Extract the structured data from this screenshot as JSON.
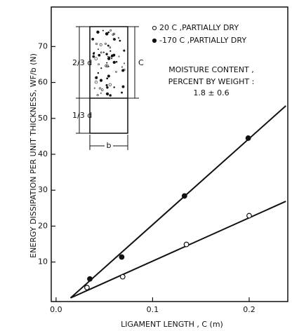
{
  "chart_data": {
    "type": "scatter",
    "x_label": "LIGAMENT LENGTH , C (m)",
    "y_label": "ENERGY DISSIPATION PER UNIT THICKNESS, WF/b (N)",
    "xlim": [
      -0.005,
      0.24
    ],
    "ylim": [
      -1,
      81
    ],
    "xticks": [
      {
        "value": 0,
        "label": "0.0"
      },
      0.1,
      0.2
    ],
    "yticks": [
      10,
      20,
      30,
      40,
      50,
      60,
      70
    ],
    "series": [
      {
        "name": "20 C ,PARTIALLY DRY",
        "color": "#111111",
        "filled": false,
        "x": [
          0.032,
          0.069,
          0.135,
          0.2
        ],
        "values": [
          2.9,
          5.9,
          14.9,
          22.9
        ],
        "line_x": [
          0.015,
          0.238
        ],
        "line_y": [
          0,
          26.9
        ]
      },
      {
        "name": "-170 C ,PARTIALLY DRY",
        "color": "#111111",
        "filled": true,
        "x": [
          0.035,
          0.068,
          0.133,
          0.199
        ],
        "values": [
          5.3,
          11.4,
          28.4,
          44.5
        ],
        "line_x": [
          0.015,
          0.238
        ],
        "line_y": [
          0,
          53.5
        ]
      }
    ],
    "annotation": [
      "MOISTURE CONTENT ,",
      "PERCENT BY WEIGHT :",
      "1.8 ± 0.6"
    ],
    "inset_labels": {
      "upper": "2/3 d",
      "lower": "1/3 d",
      "height": "C",
      "width": "b"
    }
  }
}
